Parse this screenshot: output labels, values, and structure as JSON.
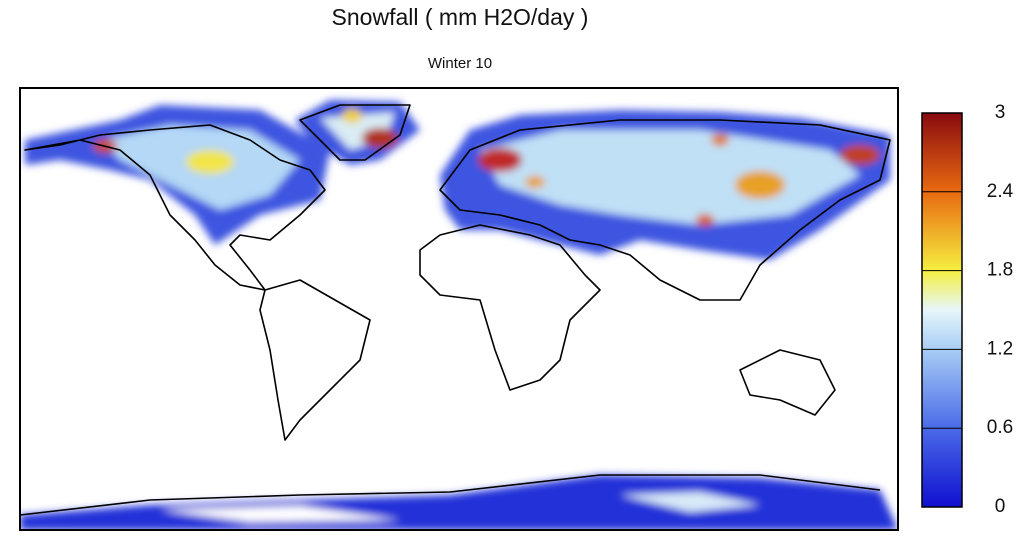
{
  "title": "Snowfall ( mm H2O/day )",
  "subtitle": "Winter 10",
  "colorbar": {
    "range": [
      0,
      3
    ],
    "ticks": [
      0,
      0.6,
      1.2,
      1.8,
      2.4,
      3
    ]
  }
}
